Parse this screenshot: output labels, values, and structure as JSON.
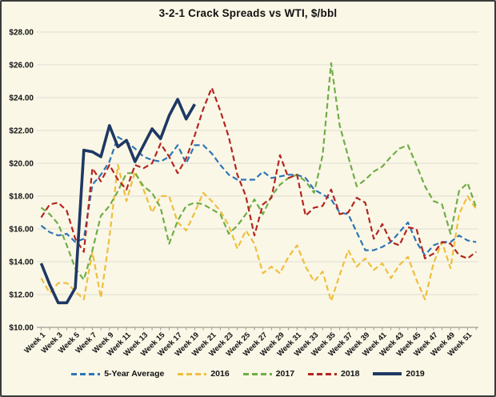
{
  "frame": {
    "title": "3-2-1 Crack Spreads vs WTI, $/bbl"
  },
  "colors": {
    "background": "#FAF7E6",
    "border": "#3A3A3A",
    "gridline": "#DDDDD2",
    "axis": "#9C9C90",
    "text": "#111111"
  },
  "legend": {
    "items": [
      {
        "label": "5-Year Average",
        "color": "#2E75B6",
        "style": "dashed"
      },
      {
        "label": "2016",
        "color": "#EFBE3E",
        "style": "dashed"
      },
      {
        "label": "2017",
        "color": "#70AD47",
        "style": "dashed"
      },
      {
        "label": "2018",
        "color": "#B42521",
        "style": "dashed"
      },
      {
        "label": "2019",
        "color": "#1F3864",
        "style": "solid"
      }
    ]
  },
  "chart_data": {
    "type": "line",
    "title": "3-2-1 Crack Spreads vs WTI, $/bbl",
    "xlabel": "",
    "ylabel": "",
    "ylim": [
      10,
      28
    ],
    "y_step": 2,
    "grid": true,
    "legend_position": "bottom",
    "ytick_labels": [
      "$28.00",
      "$26.00",
      "$24.00",
      "$22.00",
      "$20.00",
      "$18.00",
      "$16.00",
      "$14.00",
      "$12.00",
      "$10.00"
    ],
    "xtick_labels": [
      "Week 1",
      "Week 3",
      "Week 5",
      "Week 7",
      "Week 9",
      "Week 11",
      "Week 13",
      "Week 15",
      "Week 17",
      "Week 19",
      "Week 21",
      "Week 23",
      "Week 25",
      "Week 27",
      "Week 29",
      "Week 31",
      "Week 33",
      "Week 35",
      "Week 37",
      "Week 39",
      "Week 41",
      "Week 43",
      "Week 45",
      "Week 47",
      "Week 49",
      "Week 51"
    ],
    "x_unit": "week",
    "x_count": 52,
    "series": [
      {
        "name": "5-Year Average",
        "color": "#2E75B6",
        "dash": true,
        "width": 2.2,
        "values": [
          16.2,
          15.8,
          15.6,
          15.7,
          15.2,
          15.4,
          18.7,
          19.3,
          20.1,
          21.6,
          21.3,
          20.9,
          20.4,
          20.2,
          20.1,
          20.4,
          21.1,
          20.0,
          21.1,
          21.1,
          20.6,
          19.9,
          19.3,
          19.0,
          19.0,
          19.0,
          19.5,
          19.1,
          19.2,
          19.3,
          19.3,
          19.1,
          18.4,
          18.1,
          17.8,
          17.0,
          16.9,
          15.8,
          14.7,
          14.7,
          14.9,
          15.2,
          15.8,
          16.4,
          15.2,
          14.4,
          15.0,
          15.2,
          15.2,
          15.6,
          15.3,
          15.2
        ]
      },
      {
        "name": "2016",
        "color": "#EFBE3E",
        "dash": true,
        "width": 2.2,
        "values": [
          13.0,
          12.1,
          12.7,
          12.7,
          12.2,
          11.7,
          14.6,
          11.8,
          15.5,
          19.9,
          17.7,
          19.5,
          18.4,
          17.0,
          18.0,
          18.0,
          16.4,
          15.9,
          17.0,
          18.2,
          17.7,
          17.1,
          16.2,
          14.8,
          15.9,
          15.1,
          13.3,
          13.7,
          13.3,
          14.3,
          15.0,
          13.7,
          12.8,
          13.4,
          11.6,
          13.2,
          14.7,
          13.7,
          14.2,
          13.5,
          13.9,
          13.0,
          13.8,
          14.3,
          12.9,
          11.7,
          13.9,
          15.2,
          13.6,
          16.9,
          18.0,
          17.2
        ]
      },
      {
        "name": "2017",
        "color": "#70AD47",
        "dash": true,
        "width": 2.2,
        "values": [
          17.3,
          16.9,
          16.3,
          15.0,
          13.6,
          12.9,
          14.7,
          16.8,
          17.4,
          18.3,
          19.4,
          19.4,
          18.6,
          18.2,
          17.3,
          15.1,
          16.5,
          17.4,
          17.6,
          17.5,
          17.2,
          16.9,
          15.7,
          16.2,
          16.9,
          17.8,
          16.9,
          18.0,
          18.7,
          19.1,
          19.3,
          18.9,
          18.2,
          20.5,
          26.1,
          22.3,
          20.4,
          18.6,
          19.0,
          19.5,
          19.8,
          20.4,
          20.9,
          21.1,
          19.9,
          18.6,
          17.7,
          17.5,
          15.7,
          18.3,
          18.8,
          17.3
        ]
      },
      {
        "name": "2018",
        "color": "#B42521",
        "dash": true,
        "width": 2.2,
        "values": [
          16.7,
          17.5,
          17.6,
          17.1,
          15.4,
          14.6,
          19.7,
          18.9,
          19.9,
          19.0,
          18.4,
          19.9,
          19.7,
          20.0,
          21.2,
          20.4,
          19.4,
          20.3,
          21.7,
          23.3,
          24.6,
          23.2,
          21.6,
          19.3,
          18.0,
          15.6,
          17.5,
          17.9,
          20.5,
          19.1,
          19.3,
          16.8,
          17.3,
          17.4,
          18.4,
          16.9,
          17.0,
          17.9,
          17.6,
          15.4,
          16.3,
          15.2,
          15.0,
          16.1,
          16.0,
          14.2,
          14.5,
          15.2,
          15.1,
          14.4,
          14.2,
          14.6
        ]
      },
      {
        "name": "2019",
        "color": "#1F3864",
        "dash": false,
        "width": 3.6,
        "values": [
          13.9,
          12.6,
          11.5,
          11.5,
          12.4,
          20.8,
          20.7,
          20.4,
          22.3,
          21.0,
          21.4,
          20.1,
          21.1,
          22.1,
          21.5,
          22.9,
          23.9,
          22.7,
          23.6
        ]
      }
    ]
  }
}
